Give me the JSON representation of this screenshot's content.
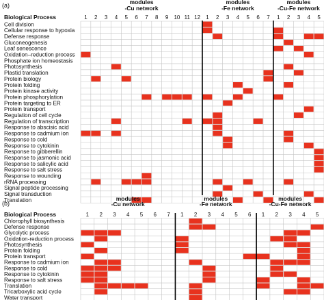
{
  "colors": {
    "cell": "#e8321e",
    "grid": "#c4c4c4",
    "separator": "#000000",
    "text": "#111111"
  },
  "chart_data": [
    {
      "type": "heatmap",
      "panel": "(a)",
      "row_header": "Biological Process",
      "groups": [
        {
          "title_line1": "modules",
          "title_line2": "-Cu network",
          "modules": [
            "1",
            "2",
            "3",
            "4",
            "5",
            "6",
            "7",
            "8",
            "9",
            "10",
            "11",
            "12"
          ]
        },
        {
          "title_line1": "modules",
          "title_line2": "-Fe network",
          "modules": [
            "1",
            "2",
            "3",
            "4",
            "5",
            "6",
            "7"
          ]
        },
        {
          "title_line1": "modules",
          "title_line2": "-Cu-Fe network",
          "modules": [
            "1",
            "2",
            "3",
            "4",
            "5"
          ]
        }
      ],
      "rows": [
        "Cell division",
        "Cellular response to hypoxia",
        "Defense response",
        "Gluconeogenesis",
        "Leaf senescence",
        "Oxidation–reduction process",
        "Phosphate ion homeostasis",
        "Photosynthesis",
        "Plastid translation",
        "Protein biology",
        "Protein folding",
        "Protein kinase activity",
        "Protein phosphorylation",
        "Protein targeting to ER",
        "Protein transport",
        "Regulation of cell cycle",
        "Regulation of transcription",
        "Response to abscisic acid",
        "Response to cadmium ion",
        "Response to cold",
        "Response to cytokinin",
        "Response to gibberellin",
        "Response to jasmonic acid",
        "Response to salicylic acid",
        "Response to salt stress",
        "Response to wounding",
        "rRNA processing",
        "Signal peptide processing",
        "Signal transduction",
        "Translation"
      ],
      "filled": [
        [
          0,
          12
        ],
        [
          1,
          12
        ],
        [
          1,
          19
        ],
        [
          2,
          13
        ],
        [
          2,
          19
        ],
        [
          2,
          22
        ],
        [
          2,
          23
        ],
        [
          3,
          20
        ],
        [
          4,
          19
        ],
        [
          4,
          21
        ],
        [
          5,
          0
        ],
        [
          5,
          22
        ],
        [
          7,
          3
        ],
        [
          7,
          20
        ],
        [
          8,
          18
        ],
        [
          8,
          21
        ],
        [
          9,
          1
        ],
        [
          9,
          4
        ],
        [
          9,
          18
        ],
        [
          10,
          15
        ],
        [
          10,
          20
        ],
        [
          11,
          16
        ],
        [
          12,
          6
        ],
        [
          12,
          8
        ],
        [
          12,
          9
        ],
        [
          12,
          10
        ],
        [
          12,
          12
        ],
        [
          12,
          15
        ],
        [
          12,
          19
        ],
        [
          13,
          14
        ],
        [
          14,
          22
        ],
        [
          15,
          13
        ],
        [
          15,
          21
        ],
        [
          16,
          3
        ],
        [
          16,
          10
        ],
        [
          16,
          12
        ],
        [
          16,
          13
        ],
        [
          16,
          17
        ],
        [
          17,
          13
        ],
        [
          18,
          0
        ],
        [
          18,
          1
        ],
        [
          18,
          3
        ],
        [
          18,
          13
        ],
        [
          18,
          20
        ],
        [
          19,
          14
        ],
        [
          19,
          20
        ],
        [
          20,
          14
        ],
        [
          20,
          22
        ],
        [
          21,
          23
        ],
        [
          22,
          23
        ],
        [
          23,
          23
        ],
        [
          24,
          23
        ],
        [
          25,
          6
        ],
        [
          26,
          1
        ],
        [
          26,
          4
        ],
        [
          26,
          5
        ],
        [
          26,
          6
        ],
        [
          26,
          13
        ],
        [
          26,
          16
        ],
        [
          26,
          20
        ],
        [
          27,
          14
        ],
        [
          28,
          13
        ],
        [
          28,
          17
        ],
        [
          28,
          22
        ],
        [
          29,
          5
        ],
        [
          29,
          6
        ],
        [
          29,
          15
        ],
        [
          29,
          18
        ],
        [
          29,
          23
        ]
      ]
    },
    {
      "type": "heatmap",
      "panel": "(b)",
      "row_header": "Biological Process",
      "groups": [
        {
          "title_line1": "modules",
          "title_line2": "-Cu network",
          "modules": [
            "1",
            "2",
            "3",
            "4",
            "5",
            "6",
            "7"
          ]
        },
        {
          "title_line1": "modules",
          "title_line2": "-Fe network",
          "modules": [
            "1",
            "2",
            "3",
            "4",
            "5",
            "6"
          ]
        },
        {
          "title_line1": "modules",
          "title_line2": "-Cu-Fe network",
          "modules": [
            "1",
            "2",
            "3",
            "4",
            "5"
          ]
        }
      ],
      "rows": [
        "Chlorophyll biosynthesis",
        "Defense response",
        "Glycolytic process",
        "Oxidation-reduction process",
        "Photosynthesis",
        "Protein folding",
        "Protein transport",
        "Response to cadmium ion",
        "Response to cold",
        "Response to cytokinin",
        "Response to salt stress",
        "Translation",
        "Tricarboxylic acid cycle",
        "Water transport"
      ],
      "filled": [
        [
          0,
          8
        ],
        [
          1,
          8
        ],
        [
          1,
          9
        ],
        [
          1,
          17
        ],
        [
          2,
          0
        ],
        [
          2,
          1
        ],
        [
          2,
          2
        ],
        [
          2,
          15
        ],
        [
          2,
          16
        ],
        [
          3,
          1
        ],
        [
          3,
          7
        ],
        [
          3,
          14
        ],
        [
          3,
          15
        ],
        [
          4,
          0
        ],
        [
          4,
          7
        ],
        [
          4,
          15
        ],
        [
          4,
          16
        ],
        [
          5,
          1
        ],
        [
          5,
          7
        ],
        [
          5,
          16
        ],
        [
          6,
          0
        ],
        [
          6,
          12
        ],
        [
          6,
          13
        ],
        [
          6,
          16
        ],
        [
          7,
          1
        ],
        [
          7,
          2
        ],
        [
          7,
          8
        ],
        [
          7,
          14
        ],
        [
          7,
          15
        ],
        [
          7,
          16
        ],
        [
          8,
          0
        ],
        [
          8,
          1
        ],
        [
          8,
          2
        ],
        [
          8,
          9
        ],
        [
          8,
          14
        ],
        [
          9,
          0
        ],
        [
          9,
          1
        ],
        [
          9,
          9
        ],
        [
          9,
          14
        ],
        [
          9,
          15
        ],
        [
          10,
          0
        ],
        [
          10,
          1
        ],
        [
          10,
          9
        ],
        [
          10,
          13
        ],
        [
          10,
          16
        ],
        [
          11,
          1
        ],
        [
          11,
          2
        ],
        [
          11,
          3
        ],
        [
          11,
          4
        ],
        [
          11,
          8
        ],
        [
          11,
          13
        ],
        [
          11,
          16
        ],
        [
          11,
          17
        ],
        [
          12,
          1
        ],
        [
          12,
          8
        ],
        [
          12,
          15
        ],
        [
          12,
          16
        ],
        [
          13,
          8
        ]
      ]
    }
  ]
}
